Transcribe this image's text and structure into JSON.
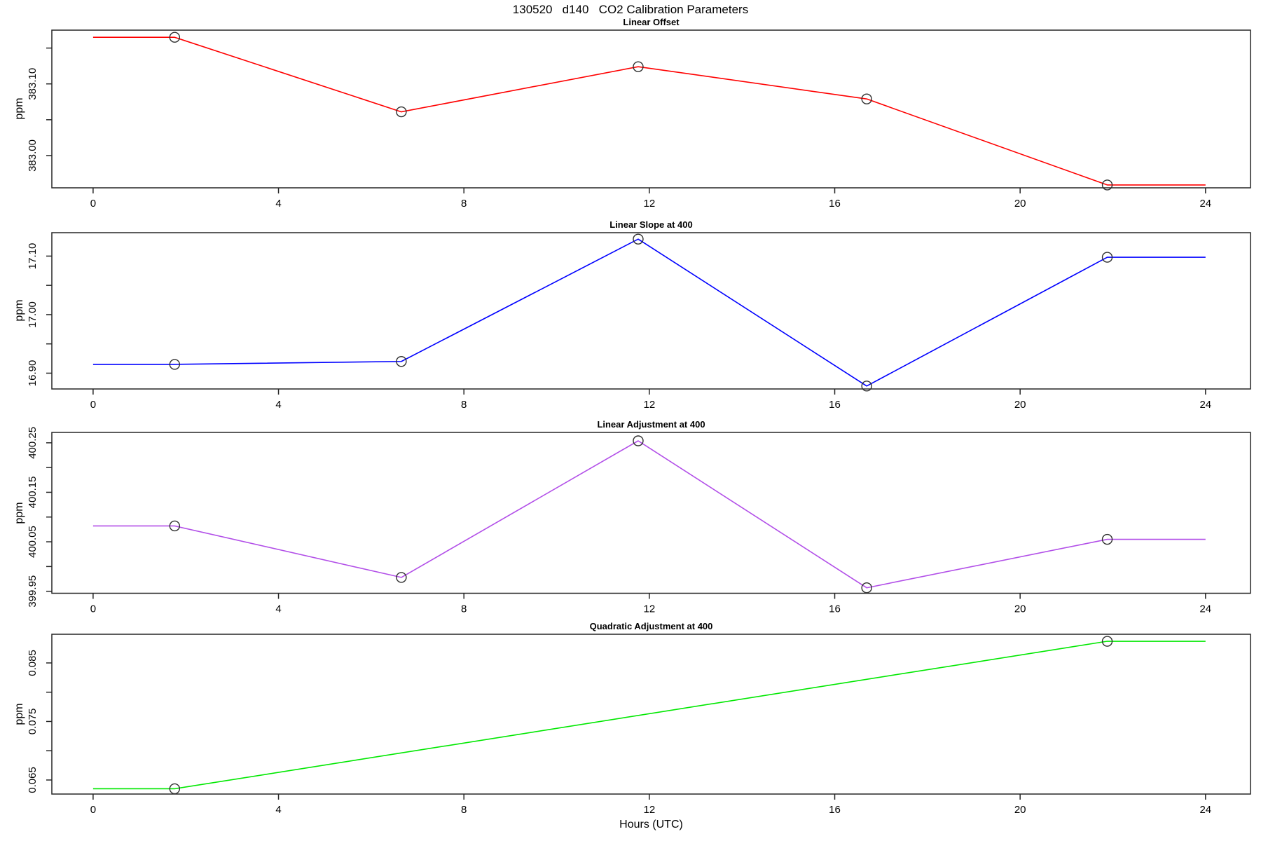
{
  "figure": {
    "title": "130520   d140   CO2 Calibration Parameters",
    "xlabel": "Hours (UTC)"
  },
  "chart_data": {
    "type": "line",
    "xlabel": "Hours (UTC)",
    "xlim": [
      -0.89,
      24.97
    ],
    "x_ticks": [
      0,
      4,
      8,
      12,
      16,
      20,
      24
    ],
    "x_tick_labels": [
      "0",
      "4",
      "8",
      "12",
      "16",
      "20",
      "24"
    ],
    "marker_style": "open-circle",
    "panels": [
      {
        "title": "Linear Offset",
        "ylabel": "ppm",
        "color": "#ff0000",
        "ylim": [
          382.955,
          383.175
        ],
        "yticks": [
          383.0,
          383.05,
          383.1,
          383.15
        ],
        "ytick_labels": [
          "383.00",
          "",
          "383.10",
          ""
        ],
        "x": [
          0,
          1.76,
          6.65,
          11.76,
          16.69,
          21.88,
          24
        ],
        "y": [
          383.165,
          383.165,
          383.061,
          383.124,
          383.079,
          382.959,
          382.959
        ],
        "marker_idx": [
          1,
          2,
          3,
          4,
          5
        ]
      },
      {
        "title": "Linear Slope at 400",
        "ylabel": "ppm",
        "color": "#0000ff",
        "ylim": [
          16.873,
          17.14
        ],
        "yticks": [
          16.9,
          16.95,
          17.0,
          17.05,
          17.1
        ],
        "ytick_labels": [
          "16.90",
          "",
          "17.00",
          "",
          "17.10"
        ],
        "x": [
          0,
          1.76,
          6.65,
          11.76,
          16.69,
          21.88,
          24
        ],
        "y": [
          16.915,
          16.915,
          16.92,
          17.129,
          16.878,
          17.098,
          17.098
        ],
        "marker_idx": [
          1,
          2,
          3,
          4,
          5
        ]
      },
      {
        "title": "Linear Adjustment at 400",
        "ylabel": "ppm",
        "color": "#b24fe8",
        "ylim": [
          399.946,
          400.271
        ],
        "yticks": [
          399.95,
          400.0,
          400.05,
          400.1,
          400.15,
          400.2,
          400.25
        ],
        "ytick_labels": [
          "399.95",
          "",
          "400.05",
          "",
          "400.15",
          "",
          "400.25"
        ],
        "x": [
          0,
          1.76,
          6.65,
          11.76,
          16.69,
          21.88,
          24
        ],
        "y": [
          400.082,
          400.082,
          399.978,
          400.254,
          399.957,
          400.055,
          400.055
        ],
        "marker_idx": [
          1,
          2,
          3,
          4,
          5
        ]
      },
      {
        "title": "Quadratic Adjustment at 400",
        "ylabel": "ppm",
        "color": "#00e800",
        "ylim": [
          0.0626,
          0.0899
        ],
        "yticks": [
          0.065,
          0.07,
          0.075,
          0.08,
          0.085
        ],
        "ytick_labels": [
          "0.065",
          "",
          "0.075",
          "",
          "0.085"
        ],
        "x": [
          0,
          1.76,
          21.88,
          24
        ],
        "y": [
          0.0635,
          0.0635,
          0.0887,
          0.0887
        ],
        "marker_idx": [
          1,
          2
        ]
      }
    ]
  }
}
